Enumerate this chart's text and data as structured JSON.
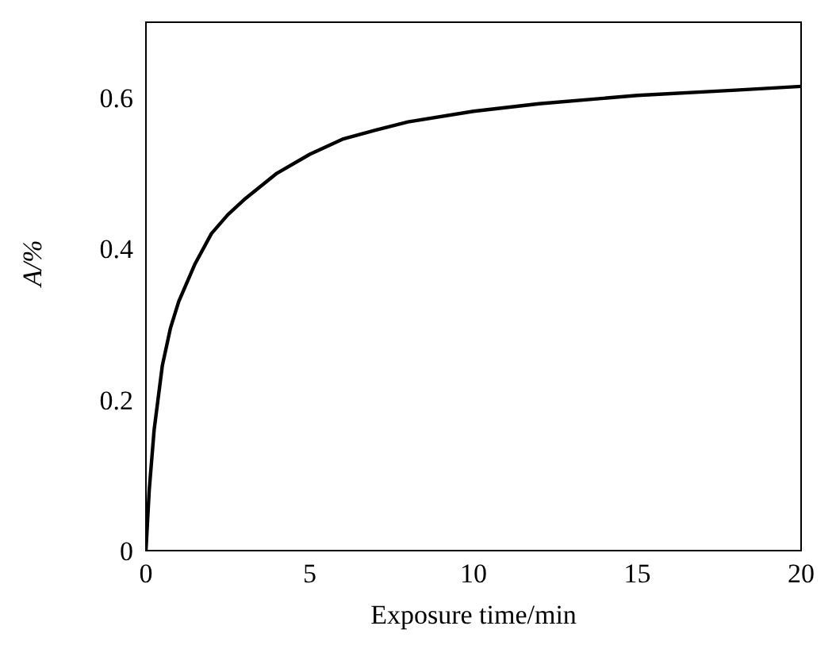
{
  "chart_data": {
    "type": "line",
    "xlabel": "Exposure time/min",
    "ylabel": "A/%",
    "x": [
      0,
      0.1,
      0.25,
      0.5,
      0.75,
      1,
      1.5,
      2,
      2.5,
      3,
      4,
      5,
      6,
      7,
      8,
      10,
      12,
      15,
      18,
      20
    ],
    "series": [
      {
        "color": "#000000",
        "values": [
          0,
          0.08,
          0.16,
          0.245,
          0.295,
          0.33,
          0.38,
          0.42,
          0.445,
          0.465,
          0.5,
          0.525,
          0.545,
          0.557,
          0.568,
          0.582,
          0.592,
          0.603,
          0.61,
          0.615
        ]
      }
    ],
    "xlim": [
      0,
      20
    ],
    "xticks": [
      0,
      5,
      10,
      15,
      20
    ],
    "ylim": [
      0,
      0.7
    ],
    "yticks": [
      0,
      0.2,
      0.4,
      0.6
    ],
    "grid": false,
    "legend": false,
    "marker": "none",
    "line_style": "solid"
  }
}
